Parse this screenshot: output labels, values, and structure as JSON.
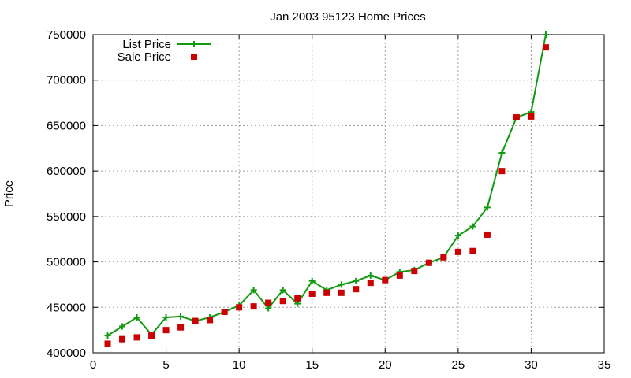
{
  "chart_data": {
    "type": "line",
    "title": "Jan 2003 95123 Home Prices",
    "xlabel": "",
    "ylabel": "Price",
    "xlim": [
      0,
      35
    ],
    "ylim": [
      400000,
      750000
    ],
    "xticks": [
      0,
      5,
      10,
      15,
      20,
      25,
      30,
      35
    ],
    "yticks": [
      400000,
      450000,
      500000,
      550000,
      600000,
      650000,
      700000,
      750000
    ],
    "grid": true,
    "legend_position": "top-left",
    "series": [
      {
        "name": "List Price",
        "style": "lines+points",
        "marker": "plus",
        "color": "#119911",
        "x": [
          1,
          2,
          3,
          4,
          5,
          6,
          7,
          8,
          9,
          10,
          11,
          12,
          13,
          14,
          15,
          16,
          17,
          18,
          19,
          20,
          21,
          22,
          23,
          24,
          25,
          26,
          27,
          28,
          29,
          30,
          31
        ],
        "y": [
          419000,
          429000,
          439000,
          420000,
          439000,
          440000,
          435000,
          439000,
          445000,
          452000,
          469000,
          449000,
          469000,
          454000,
          479000,
          469000,
          475000,
          479000,
          485000,
          480000,
          489000,
          491000,
          499000,
          505000,
          529000,
          539000,
          560000,
          620000,
          659000,
          665000,
          750000
        ]
      },
      {
        "name": "Sale Price",
        "style": "points",
        "marker": "square",
        "color": "#cc0000",
        "x": [
          1,
          2,
          3,
          4,
          5,
          6,
          7,
          8,
          9,
          10,
          11,
          12,
          13,
          14,
          15,
          16,
          17,
          18,
          19,
          20,
          21,
          22,
          23,
          24,
          25,
          26,
          27,
          28,
          29,
          30,
          31
        ],
        "y": [
          410000,
          415000,
          417000,
          419000,
          425000,
          428000,
          435000,
          436000,
          445000,
          450000,
          451000,
          455000,
          457000,
          460000,
          465000,
          466000,
          466000,
          470000,
          477000,
          480000,
          485000,
          490000,
          499000,
          505000,
          511000,
          512000,
          530000,
          600000,
          659000,
          660000,
          736000
        ]
      }
    ]
  }
}
